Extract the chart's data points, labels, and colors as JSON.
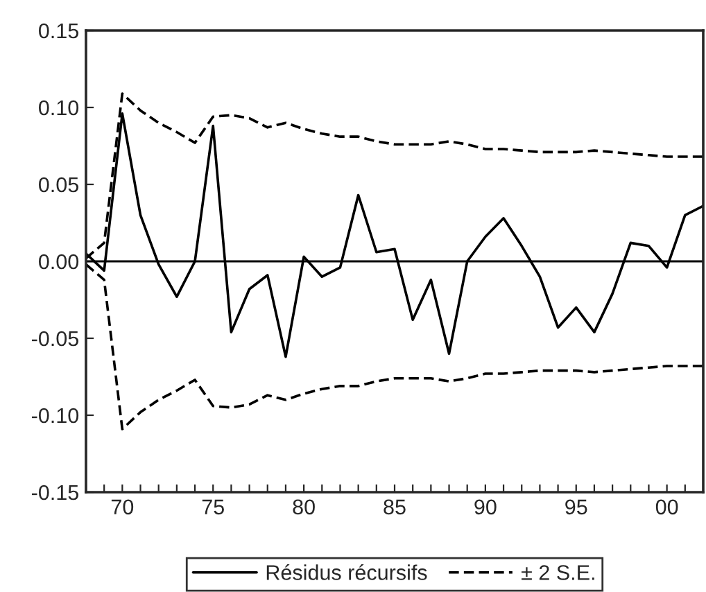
{
  "chart_data": {
    "type": "line",
    "x": [
      1968,
      1969,
      1970,
      1971,
      1972,
      1973,
      1974,
      1975,
      1976,
      1977,
      1978,
      1979,
      1980,
      1981,
      1982,
      1983,
      1984,
      1985,
      1986,
      1987,
      1988,
      1989,
      1990,
      1991,
      1992,
      1993,
      1994,
      1995,
      1996,
      1997,
      1998,
      1999,
      2000,
      2001,
      2002
    ],
    "series": [
      {
        "name": "Résidus récursifs",
        "color": "#000000",
        "line_style": "solid",
        "values": [
          0.005,
          -0.006,
          0.096,
          0.03,
          -0.002,
          -0.023,
          0.0,
          0.088,
          -0.046,
          -0.018,
          -0.009,
          -0.062,
          0.003,
          -0.01,
          -0.004,
          0.043,
          0.006,
          0.008,
          -0.038,
          -0.012,
          -0.06,
          0.0,
          0.016,
          0.028,
          0.01,
          -0.01,
          -0.043,
          -0.03,
          -0.046,
          -0.021,
          0.012,
          0.01,
          -0.004,
          0.03,
          0.036
        ]
      },
      {
        "name": "± 2 S.E.",
        "color": "#000000",
        "line_style": "dashed",
        "values": [
          0.002,
          0.012,
          0.109,
          0.098,
          0.09,
          0.084,
          0.077,
          0.094,
          0.095,
          0.093,
          0.087,
          0.09,
          0.086,
          0.083,
          0.081,
          0.081,
          0.078,
          0.076,
          0.076,
          0.076,
          0.078,
          0.076,
          0.073,
          0.073,
          0.072,
          0.071,
          0.071,
          0.071,
          0.072,
          0.071,
          0.07,
          0.069,
          0.068,
          0.068,
          0.068
        ]
      },
      {
        "color": "#000000",
        "line_style": "dashed",
        "values": [
          -0.002,
          -0.012,
          -0.109,
          -0.098,
          -0.09,
          -0.084,
          -0.077,
          -0.094,
          -0.095,
          -0.093,
          -0.087,
          -0.09,
          -0.086,
          -0.083,
          -0.081,
          -0.081,
          -0.078,
          -0.076,
          -0.076,
          -0.076,
          -0.078,
          -0.076,
          -0.073,
          -0.073,
          -0.072,
          -0.071,
          -0.071,
          -0.071,
          -0.072,
          -0.071,
          -0.07,
          -0.069,
          -0.068,
          -0.068,
          -0.068
        ]
      }
    ],
    "xlim": [
      1968,
      2002
    ],
    "xticks": [
      {
        "value": 1968,
        "label": null
      },
      {
        "value": 1969,
        "label": null
      },
      {
        "value": 1970,
        "label": "70"
      },
      {
        "value": 1971,
        "label": null
      },
      {
        "value": 1972,
        "label": null
      },
      {
        "value": 1973,
        "label": null
      },
      {
        "value": 1974,
        "label": null
      },
      {
        "value": 1975,
        "label": "75"
      },
      {
        "value": 1976,
        "label": null
      },
      {
        "value": 1977,
        "label": null
      },
      {
        "value": 1978,
        "label": null
      },
      {
        "value": 1979,
        "label": null
      },
      {
        "value": 1980,
        "label": "80"
      },
      {
        "value": 1981,
        "label": null
      },
      {
        "value": 1982,
        "label": null
      },
      {
        "value": 1983,
        "label": null
      },
      {
        "value": 1984,
        "label": null
      },
      {
        "value": 1985,
        "label": "85"
      },
      {
        "value": 1986,
        "label": null
      },
      {
        "value": 1987,
        "label": null
      },
      {
        "value": 1988,
        "label": null
      },
      {
        "value": 1989,
        "label": null
      },
      {
        "value": 1990,
        "label": "90"
      },
      {
        "value": 1991,
        "label": null
      },
      {
        "value": 1992,
        "label": null
      },
      {
        "value": 1993,
        "label": null
      },
      {
        "value": 1994,
        "label": null
      },
      {
        "value": 1995,
        "label": "95"
      },
      {
        "value": 1996,
        "label": null
      },
      {
        "value": 1997,
        "label": null
      },
      {
        "value": 1998,
        "label": null
      },
      {
        "value": 1999,
        "label": null
      },
      {
        "value": 2000,
        "label": "00"
      },
      {
        "value": 2001,
        "label": null
      }
    ],
    "ylim": [
      -0.15,
      0.15
    ],
    "yticks": [
      {
        "value": -0.15,
        "label": "-0.15"
      },
      {
        "value": -0.1,
        "label": "-0.10"
      },
      {
        "value": -0.05,
        "label": "-0.05"
      },
      {
        "value": 0.0,
        "label": "0.00"
      },
      {
        "value": 0.05,
        "label": "0.05"
      },
      {
        "value": 0.1,
        "label": "0.10"
      },
      {
        "value": 0.15,
        "label": "0.15"
      }
    ],
    "ref_lines": [
      {
        "axis": "y",
        "value": 0.0,
        "color": "#000000",
        "line_style": "solid"
      }
    ],
    "grid": false,
    "legend": "bottom",
    "marker": "none"
  }
}
